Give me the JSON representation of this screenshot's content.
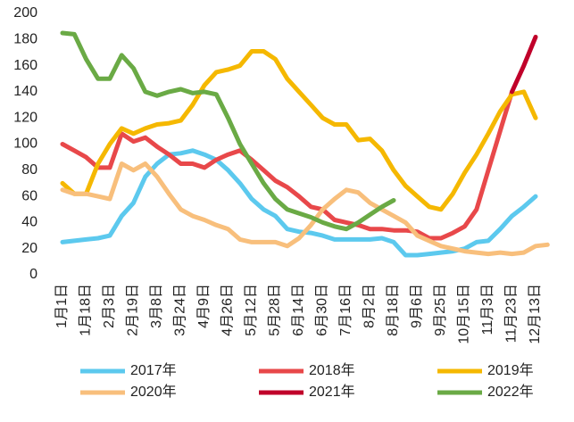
{
  "chart_data": {
    "type": "line",
    "categories": [
      "1月1日",
      null,
      "1月18日",
      null,
      "2月3日",
      null,
      "2月19日",
      null,
      "3月8日",
      null,
      "3月24日",
      null,
      "4月9日",
      null,
      "4月26日",
      null,
      "5月12日",
      null,
      "5月28日",
      null,
      "6月14日",
      null,
      "6月30日",
      null,
      "7月16日",
      null,
      "8月2日",
      null,
      "8月18日",
      null,
      "9月6日",
      null,
      "9月25日",
      null,
      "10月15日",
      null,
      "11月3日",
      null,
      "11月23日",
      null,
      "12月13日",
      null
    ],
    "series": [
      {
        "name": "2017年",
        "color": "#5cc9ee",
        "values": [
          25,
          26,
          27,
          28,
          30,
          45,
          55,
          75,
          85,
          92,
          93,
          95,
          92,
          88,
          80,
          70,
          58,
          50,
          45,
          35,
          33,
          32,
          30,
          27,
          27,
          27,
          27,
          28,
          25,
          15,
          15,
          16,
          17,
          18,
          20,
          25,
          26,
          35,
          45,
          52,
          60,
          null
        ]
      },
      {
        "name": "2018年",
        "color": "#e8484a",
        "values": [
          100,
          95,
          90,
          82,
          82,
          108,
          102,
          105,
          98,
          92,
          85,
          85,
          82,
          88,
          92,
          95,
          88,
          80,
          72,
          67,
          60,
          52,
          50,
          42,
          40,
          38,
          35,
          35,
          34,
          34,
          33,
          28,
          28,
          32,
          37,
          50,
          80,
          110,
          140,
          null,
          null,
          null
        ]
      },
      {
        "name": "2019年",
        "color": "#f5b800",
        "values": [
          70,
          62,
          62,
          85,
          100,
          112,
          108,
          112,
          115,
          116,
          118,
          130,
          145,
          155,
          157,
          160,
          171,
          171,
          165,
          150,
          140,
          130,
          120,
          115,
          115,
          103,
          104,
          95,
          80,
          68,
          60,
          52,
          50,
          62,
          78,
          92,
          108,
          125,
          138,
          140,
          120,
          null
        ]
      },
      {
        "name": "2020年",
        "color": "#f8bf7c",
        "values": [
          65,
          62,
          62,
          60,
          58,
          85,
          80,
          85,
          75,
          62,
          50,
          45,
          42,
          38,
          35,
          27,
          25,
          25,
          25,
          22,
          28,
          38,
          50,
          58,
          65,
          63,
          55,
          50,
          45,
          40,
          30,
          26,
          22,
          20,
          18,
          17,
          16,
          17,
          16,
          17,
          22,
          23
        ]
      },
      {
        "name": "2021年",
        "color": "#c0002a",
        "values": [
          null,
          null,
          null,
          null,
          null,
          null,
          null,
          null,
          null,
          null,
          null,
          null,
          null,
          null,
          null,
          null,
          null,
          null,
          null,
          null,
          null,
          null,
          null,
          null,
          null,
          null,
          null,
          null,
          null,
          null,
          null,
          null,
          null,
          null,
          null,
          null,
          null,
          null,
          140,
          160,
          182,
          null
        ]
      },
      {
        "name": "2022年",
        "color": "#6aaa45",
        "values": [
          185,
          184,
          165,
          150,
          150,
          168,
          158,
          140,
          137,
          140,
          142,
          139,
          140,
          138,
          120,
          100,
          85,
          70,
          58,
          50,
          47,
          44,
          40,
          37,
          35,
          40,
          46,
          52,
          57,
          null,
          null,
          null,
          null,
          null,
          null,
          null,
          null,
          null,
          null,
          null,
          null,
          null
        ]
      }
    ],
    "ylim": [
      0,
      200
    ],
    "yticks": [
      0,
      20,
      40,
      60,
      80,
      100,
      120,
      140,
      160,
      180,
      200
    ],
    "grid": false,
    "legend": "bottom"
  }
}
